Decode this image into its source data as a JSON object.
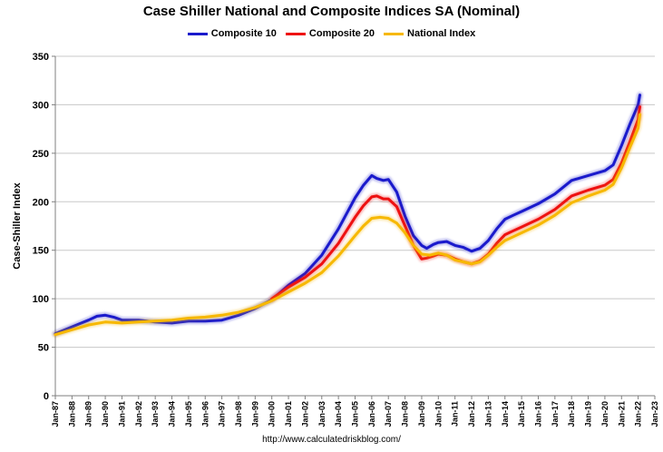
{
  "chart_data": {
    "type": "line",
    "title": "Case Shiller National and Composite Indices SA (Nominal)",
    "ylabel": "Case-Shiller Index",
    "xlabel": "",
    "ylim": [
      0,
      350
    ],
    "xlim": [
      1987.0,
      2023.0
    ],
    "y_ticks": [
      0,
      50,
      100,
      150,
      200,
      250,
      300,
      350
    ],
    "x_ticks": [
      "Jan-87",
      "Jan-88",
      "Jan-89",
      "Jan-90",
      "Jan-91",
      "Jan-92",
      "Jan-93",
      "Jan-94",
      "Jan-95",
      "Jan-96",
      "Jan-97",
      "Jan-98",
      "Jan-99",
      "Jan-00",
      "Jan-01",
      "Jan-02",
      "Jan-03",
      "Jan-04",
      "Jan-05",
      "Jan-06",
      "Jan-07",
      "Jan-08",
      "Jan-09",
      "Jan-10",
      "Jan-11",
      "Jan-12",
      "Jan-13",
      "Jan-14",
      "Jan-15",
      "Jan-16",
      "Jan-17",
      "Jan-18",
      "Jan-19",
      "Jan-20",
      "Jan-21",
      "Jan-22",
      "Jan-23"
    ],
    "grid": "horizontal",
    "legend_position": "top",
    "series": [
      {
        "name": "Composite 10",
        "color": "#1a1acc",
        "x": [
          1987.0,
          1988.0,
          1989.0,
          1989.5,
          1990.0,
          1990.5,
          1991.0,
          1992.0,
          1993.0,
          1994.0,
          1995.0,
          1996.0,
          1997.0,
          1998.0,
          1999.0,
          2000.0,
          2001.0,
          2002.0,
          2003.0,
          2004.0,
          2005.0,
          2005.5,
          2006.0,
          2006.3,
          2006.7,
          2007.0,
          2007.5,
          2008.0,
          2008.5,
          2009.0,
          2009.3,
          2009.7,
          2010.0,
          2010.5,
          2011.0,
          2011.5,
          2012.0,
          2012.5,
          2013.0,
          2013.5,
          2014.0,
          2014.5,
          2015.0,
          2016.0,
          2017.0,
          2018.0,
          2019.0,
          2020.0,
          2020.5,
          2021.0,
          2021.5,
          2022.0,
          2022.1
        ],
        "y": [
          64,
          71,
          78,
          82,
          83,
          81,
          78,
          78,
          76,
          75,
          77,
          77,
          78,
          83,
          90,
          99,
          114,
          126,
          145,
          172,
          204,
          217,
          227,
          224,
          222,
          223,
          210,
          185,
          165,
          155,
          152,
          156,
          158,
          159,
          155,
          153,
          149,
          152,
          160,
          172,
          182,
          186,
          190,
          198,
          208,
          222,
          227,
          232,
          238,
          258,
          280,
          300,
          310
        ]
      },
      {
        "name": "Composite 20",
        "color": "#ee1111",
        "x": [
          2000.0,
          2001.0,
          2002.0,
          2003.0,
          2004.0,
          2005.0,
          2005.5,
          2006.0,
          2006.3,
          2006.7,
          2007.0,
          2007.5,
          2008.0,
          2008.5,
          2009.0,
          2009.3,
          2009.7,
          2010.0,
          2010.5,
          2011.0,
          2011.5,
          2012.0,
          2012.5,
          2013.0,
          2013.5,
          2014.0,
          2014.5,
          2015.0,
          2016.0,
          2017.0,
          2018.0,
          2019.0,
          2020.0,
          2020.5,
          2021.0,
          2021.5,
          2022.0,
          2022.1
        ],
        "y": [
          100,
          112,
          122,
          136,
          157,
          184,
          196,
          205,
          206,
          203,
          203,
          195,
          175,
          155,
          141,
          142,
          144,
          146,
          145,
          141,
          138,
          136,
          139,
          146,
          157,
          166,
          170,
          174,
          182,
          192,
          206,
          212,
          217,
          223,
          240,
          262,
          285,
          298
        ]
      },
      {
        "name": "National Index",
        "color": "#f7b800",
        "x": [
          1987.0,
          1988.0,
          1989.0,
          1990.0,
          1991.0,
          1992.0,
          1993.0,
          1994.0,
          1995.0,
          1996.0,
          1997.0,
          1998.0,
          1999.0,
          2000.0,
          2001.0,
          2002.0,
          2003.0,
          2004.0,
          2005.0,
          2005.5,
          2006.0,
          2006.5,
          2007.0,
          2007.5,
          2008.0,
          2008.5,
          2009.0,
          2009.5,
          2010.0,
          2010.5,
          2011.0,
          2011.5,
          2012.0,
          2012.5,
          2013.0,
          2013.5,
          2014.0,
          2014.5,
          2015.0,
          2016.0,
          2017.0,
          2018.0,
          2019.0,
          2020.0,
          2020.5,
          2021.0,
          2021.5,
          2022.0,
          2022.1
        ],
        "y": [
          63,
          68,
          73,
          76,
          75,
          76,
          77,
          78,
          80,
          81,
          83,
          86,
          91,
          98,
          107,
          116,
          127,
          144,
          165,
          175,
          183,
          184,
          183,
          178,
          168,
          155,
          146,
          145,
          147,
          145,
          140,
          138,
          136,
          138,
          145,
          153,
          160,
          164,
          168,
          176,
          186,
          199,
          206,
          212,
          218,
          235,
          256,
          276,
          290
        ]
      }
    ]
  },
  "source_text": "http://www.calculatedriskblog.com/"
}
